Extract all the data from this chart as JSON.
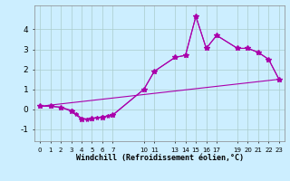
{
  "xlabel": "Windchill (Refroidissement éolien,°C)",
  "background_color": "#cceeff",
  "grid_color": "#aacccc",
  "line_color": "#aa00aa",
  "xlim": [
    -0.5,
    23.5
  ],
  "ylim": [
    -1.6,
    5.2
  ],
  "xtick_positions": [
    0,
    1,
    2,
    3,
    4,
    5,
    6,
    7,
    10,
    11,
    13,
    14,
    15,
    16,
    17,
    19,
    20,
    21,
    22,
    23
  ],
  "xtick_labels": [
    "0",
    "1",
    "2",
    "3",
    "4",
    "5",
    "6",
    "7",
    "10",
    "11",
    "13",
    "14",
    "15",
    "16",
    "17",
    "19",
    "20",
    "21",
    "22",
    "23"
  ],
  "yticks": [
    -1,
    0,
    1,
    2,
    3,
    4
  ],
  "line1_x": [
    0,
    1,
    2,
    3,
    4,
    5,
    6,
    7,
    10,
    11,
    13,
    14,
    15,
    16,
    17,
    19,
    20,
    21,
    22,
    23
  ],
  "line1_y": [
    0.15,
    0.15,
    0.1,
    -0.1,
    -0.5,
    -0.45,
    -0.4,
    -0.3,
    1.0,
    1.9,
    2.6,
    2.7,
    4.65,
    3.05,
    3.7,
    3.05,
    3.05,
    2.85,
    2.5,
    1.5
  ],
  "line2_x": [
    0,
    1,
    2,
    3,
    3.5,
    4,
    4.5,
    5,
    5.5,
    6,
    6.5,
    7,
    10,
    11,
    13,
    14,
    15,
    16,
    17,
    19,
    20,
    21,
    22,
    23
  ],
  "line2_y": [
    0.15,
    0.15,
    0.1,
    -0.05,
    -0.25,
    -0.45,
    -0.5,
    -0.45,
    -0.42,
    -0.38,
    -0.33,
    -0.28,
    1.0,
    1.9,
    2.6,
    2.7,
    4.65,
    3.05,
    3.7,
    3.05,
    3.05,
    2.85,
    2.5,
    1.5
  ],
  "line3_x": [
    0,
    23
  ],
  "line3_y": [
    0.15,
    1.5
  ]
}
